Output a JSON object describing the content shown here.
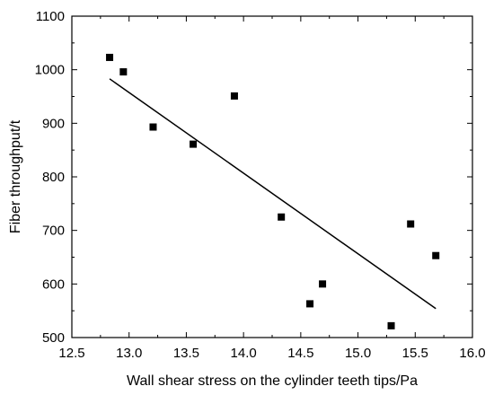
{
  "chart_data": {
    "type": "scatter",
    "xlabel": "Wall shear stress on the cylinder teeth tips/Pa",
    "ylabel": "Fiber throughput/t",
    "xlim": [
      12.5,
      16.0
    ],
    "ylim": [
      500,
      1100
    ],
    "xticks": [
      12.5,
      13.0,
      13.5,
      14.0,
      14.5,
      15.0,
      15.5,
      16.0
    ],
    "yticks": [
      500,
      600,
      700,
      800,
      900,
      1000,
      1100
    ],
    "xtick_labels": [
      "12.5",
      "13.0",
      "13.5",
      "14.0",
      "14.5",
      "15.0",
      "15.5",
      "16.0"
    ],
    "ytick_labels": [
      "500",
      "600",
      "700",
      "800",
      "900",
      "1000",
      "1100"
    ],
    "grid": false,
    "legend": "none",
    "series": [
      {
        "marker": "square",
        "color": "#000000",
        "points": [
          {
            "x": 12.83,
            "y": 1023
          },
          {
            "x": 12.95,
            "y": 996
          },
          {
            "x": 13.21,
            "y": 893
          },
          {
            "x": 13.56,
            "y": 861
          },
          {
            "x": 13.92,
            "y": 951
          },
          {
            "x": 14.33,
            "y": 725
          },
          {
            "x": 14.58,
            "y": 563
          },
          {
            "x": 14.69,
            "y": 600
          },
          {
            "x": 15.29,
            "y": 522
          },
          {
            "x": 15.46,
            "y": 712
          },
          {
            "x": 15.68,
            "y": 653
          }
        ]
      }
    ],
    "fit_line": {
      "type": "linear",
      "color": "#000000",
      "start": {
        "x": 12.83,
        "y": 983
      },
      "end": {
        "x": 15.68,
        "y": 554
      }
    }
  }
}
